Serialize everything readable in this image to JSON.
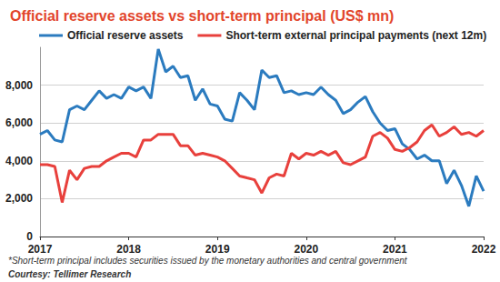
{
  "chart_data": {
    "type": "line",
    "title": "Official reserve assets vs short-term principal (US$ mn)",
    "footnote": "*Short-term principal includes securities issued by the monetary authorities and central government",
    "source": "Courtesy: Tellimer Research",
    "x": [
      2017,
      2017.083,
      2017.167,
      2017.25,
      2017.333,
      2017.417,
      2017.5,
      2017.583,
      2017.667,
      2017.75,
      2017.833,
      2017.917,
      2018,
      2018.083,
      2018.167,
      2018.25,
      2018.333,
      2018.417,
      2018.5,
      2018.583,
      2018.667,
      2018.75,
      2018.833,
      2018.917,
      2019,
      2019.083,
      2019.167,
      2019.25,
      2019.333,
      2019.417,
      2019.5,
      2019.583,
      2019.667,
      2019.75,
      2019.833,
      2019.917,
      2020,
      2020.083,
      2020.167,
      2020.25,
      2020.333,
      2020.417,
      2020.5,
      2020.583,
      2020.667,
      2020.75,
      2020.833,
      2020.917,
      2021,
      2021.083,
      2021.167,
      2021.25,
      2021.333,
      2021.417,
      2021.5,
      2021.583,
      2021.667,
      2021.75,
      2021.833,
      2021.917,
      2022
    ],
    "series": [
      {
        "name": "Official reserve assets",
        "color": "#2b7bbf",
        "values": [
          5400,
          5600,
          5100,
          5000,
          6700,
          6900,
          6700,
          7200,
          7700,
          7300,
          7500,
          7300,
          7900,
          7700,
          7900,
          7300,
          9900,
          8700,
          9000,
          8400,
          8500,
          7200,
          7800,
          7000,
          6900,
          6200,
          6100,
          7600,
          7200,
          6700,
          8800,
          8400,
          8500,
          7600,
          7700,
          7500,
          7600,
          7500,
          7900,
          7500,
          7200,
          6500,
          6700,
          7100,
          7400,
          6600,
          6000,
          5600,
          5700,
          4900,
          4600,
          4100,
          4300,
          4000,
          4000,
          2800,
          3500,
          2700,
          1600,
          3200,
          2400
        ]
      },
      {
        "name": "Short-term external principal payments (next 12m)",
        "color": "#e8403c",
        "values": [
          3800,
          3800,
          3700,
          1800,
          3500,
          3000,
          3600,
          3700,
          3700,
          4000,
          4200,
          4400,
          4400,
          4200,
          5100,
          5100,
          5400,
          5400,
          5400,
          4800,
          4800,
          4300,
          4400,
          4300,
          4200,
          4000,
          3600,
          3200,
          3100,
          3000,
          2300,
          3100,
          3300,
          3200,
          4400,
          4100,
          4400,
          4300,
          4500,
          4300,
          4500,
          3900,
          3800,
          4000,
          4200,
          5300,
          5500,
          5200,
          4600,
          4500,
          4700,
          5000,
          5600,
          5900,
          5300,
          5500,
          5800,
          5400,
          5500,
          5300,
          5600
        ]
      }
    ],
    "xlim": [
      2017,
      2022
    ],
    "xticks": [
      2017,
      2018,
      2019,
      2020,
      2021,
      2022
    ],
    "ylim": [
      0,
      10000
    ],
    "yticks": [
      0,
      {
        "value": 2000,
        "label": "2,000"
      },
      {
        "value": 4000,
        "label": "4,000"
      },
      {
        "value": 6000,
        "label": "6,000"
      },
      {
        "value": 8000,
        "label": "8,000"
      }
    ],
    "grid": true,
    "legend": "top"
  }
}
